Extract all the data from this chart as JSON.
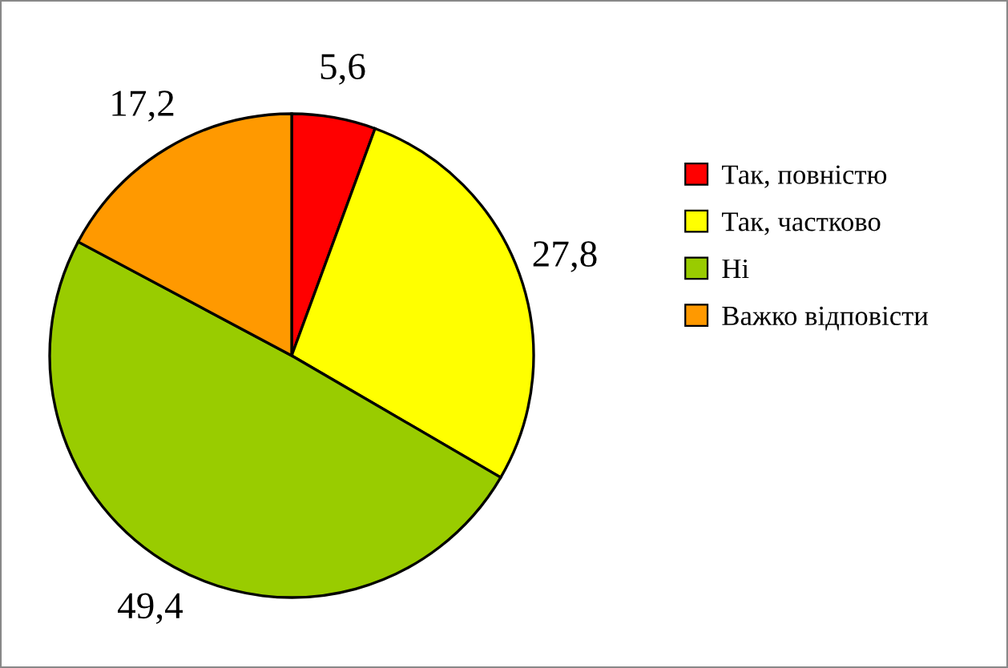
{
  "chart_data": {
    "type": "pie",
    "categories": [
      "Так, повністю",
      "Так, частково",
      "Ні",
      "Важко відповісти"
    ],
    "values": [
      5.6,
      27.8,
      49.4,
      17.2
    ],
    "colors": [
      "#ff0000",
      "#ffff00",
      "#99cc00",
      "#ff9900"
    ],
    "value_labels": [
      "5,6",
      "27,8",
      "49,4",
      "17,2"
    ],
    "legend": "right"
  }
}
